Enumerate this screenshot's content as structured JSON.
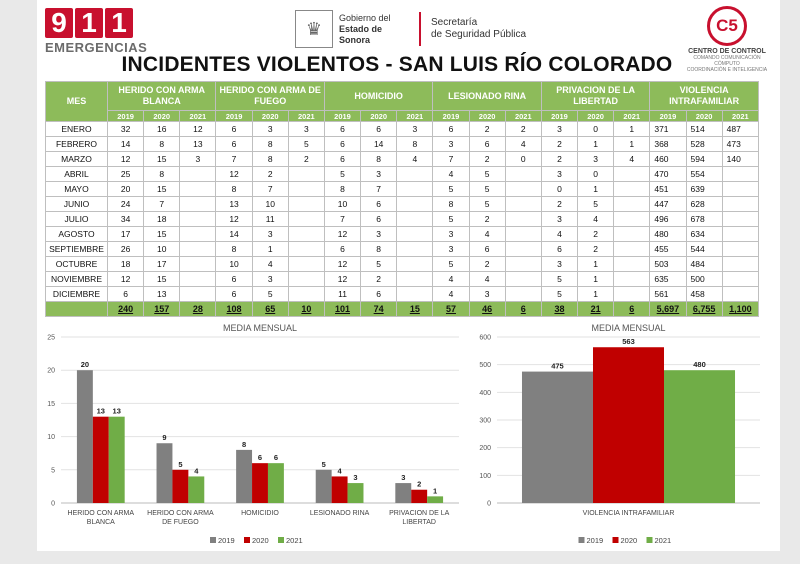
{
  "header": {
    "logo_digits": [
      "9",
      "1",
      "1"
    ],
    "logo_word": "EMERGENCIAS",
    "gov_line1": "Gobierno del",
    "gov_line2": "Estado de Sonora",
    "sec_line1": "Secretaría",
    "sec_line2": "de Seguridad Pública",
    "c5_mark": "C5",
    "c5_title": "CENTRO DE CONTROL",
    "c5_sub1": "COMANDO COMUNICACIÓN CÓMPUTO",
    "c5_sub2": "COORDINACIÓN E INTELIGENCIA",
    "title": "INCIDENTES VIOLENTOS - SAN LUIS RÍO COLORADO"
  },
  "table": {
    "mes_label": "MES",
    "groups": [
      "HERIDO CON ARMA BLANCA",
      "HERIDO CON ARMA DE FUEGO",
      "HOMICIDIO",
      "LESIONADO RINA",
      "PRIVACION DE LA LIBERTAD",
      "VIOLENCIA INTRAFAMILIAR"
    ],
    "years": [
      "2019",
      "2020",
      "2021"
    ],
    "rows": [
      [
        "ENERO",
        "32",
        "16",
        "12",
        "6",
        "3",
        "3",
        "6",
        "6",
        "3",
        "6",
        "2",
        "2",
        "3",
        "0",
        "1",
        "371",
        "514",
        "487"
      ],
      [
        "FEBRERO",
        "14",
        "8",
        "13",
        "6",
        "8",
        "5",
        "6",
        "14",
        "8",
        "3",
        "6",
        "4",
        "2",
        "1",
        "1",
        "368",
        "528",
        "473"
      ],
      [
        "MARZO",
        "12",
        "15",
        "3",
        "7",
        "8",
        "2",
        "6",
        "8",
        "4",
        "7",
        "2",
        "0",
        "2",
        "3",
        "4",
        "460",
        "594",
        "140"
      ],
      [
        "ABRIL",
        "25",
        "8",
        "",
        "12",
        "2",
        "",
        "5",
        "3",
        "",
        "4",
        "5",
        "",
        "3",
        "0",
        "",
        "470",
        "554",
        ""
      ],
      [
        "MAYO",
        "20",
        "15",
        "",
        "8",
        "7",
        "",
        "8",
        "7",
        "",
        "5",
        "5",
        "",
        "0",
        "1",
        "",
        "451",
        "639",
        ""
      ],
      [
        "JUNIO",
        "24",
        "7",
        "",
        "13",
        "10",
        "",
        "10",
        "6",
        "",
        "8",
        "5",
        "",
        "2",
        "5",
        "",
        "447",
        "628",
        ""
      ],
      [
        "JULIO",
        "34",
        "18",
        "",
        "12",
        "11",
        "",
        "7",
        "6",
        "",
        "5",
        "2",
        "",
        "3",
        "4",
        "",
        "496",
        "678",
        ""
      ],
      [
        "AGOSTO",
        "17",
        "15",
        "",
        "14",
        "3",
        "",
        "12",
        "3",
        "",
        "3",
        "4",
        "",
        "4",
        "2",
        "",
        "480",
        "634",
        ""
      ],
      [
        "SEPTIEMBRE",
        "26",
        "10",
        "",
        "8",
        "1",
        "",
        "6",
        "8",
        "",
        "3",
        "6",
        "",
        "6",
        "2",
        "",
        "455",
        "544",
        ""
      ],
      [
        "OCTUBRE",
        "18",
        "17",
        "",
        "10",
        "4",
        "",
        "12",
        "5",
        "",
        "5",
        "2",
        "",
        "3",
        "1",
        "",
        "503",
        "484",
        ""
      ],
      [
        "NOVIEMBRE",
        "12",
        "15",
        "",
        "6",
        "3",
        "",
        "12",
        "2",
        "",
        "4",
        "4",
        "",
        "5",
        "1",
        "",
        "635",
        "500",
        ""
      ],
      [
        "DICIEMBRE",
        "6",
        "13",
        "",
        "6",
        "5",
        "",
        "11",
        "6",
        "",
        "4",
        "3",
        "",
        "5",
        "1",
        "",
        "561",
        "458",
        ""
      ]
    ],
    "totals": [
      "",
      "240",
      "157",
      "28",
      "108",
      "65",
      "10",
      "101",
      "74",
      "15",
      "57",
      "46",
      "6",
      "38",
      "21",
      "6",
      "5,697",
      "6,755",
      "1,100"
    ]
  },
  "chart_data": [
    {
      "type": "bar",
      "title": "MEDIA MENSUAL",
      "categories": [
        "HERIDO CON ARMA BLANCA",
        "HERIDO CON ARMA DE FUEGO",
        "HOMICIDIO",
        "LESIONADO RINA",
        "PRIVACION DE LA LIBERTAD"
      ],
      "series": [
        {
          "name": "2019",
          "values": [
            20,
            9,
            8,
            5,
            3
          ],
          "color": "#808080"
        },
        {
          "name": "2020",
          "values": [
            13,
            5,
            6,
            4,
            2
          ],
          "color": "#c00000"
        },
        {
          "name": "2021",
          "values": [
            13,
            4,
            6,
            3,
            1
          ],
          "color": "#70ad47"
        }
      ],
      "ylim": [
        0,
        25
      ],
      "yticks": [
        "0",
        "5",
        "10",
        "15",
        "20",
        "25"
      ],
      "legend": "bottom"
    },
    {
      "type": "bar",
      "title": "MEDIA MENSUAL",
      "categories": [
        "VIOLENCIA INTRAFAMILIAR"
      ],
      "series": [
        {
          "name": "2019",
          "values": [
            475
          ],
          "color": "#808080"
        },
        {
          "name": "2020",
          "values": [
            563
          ],
          "color": "#c00000"
        },
        {
          "name": "2021",
          "values": [
            480
          ],
          "color": "#70ad47"
        }
      ],
      "ylim": [
        0,
        600
      ],
      "yticks": [
        "0",
        "100",
        "200",
        "300",
        "400",
        "500",
        "600"
      ],
      "legend": "bottom"
    }
  ]
}
